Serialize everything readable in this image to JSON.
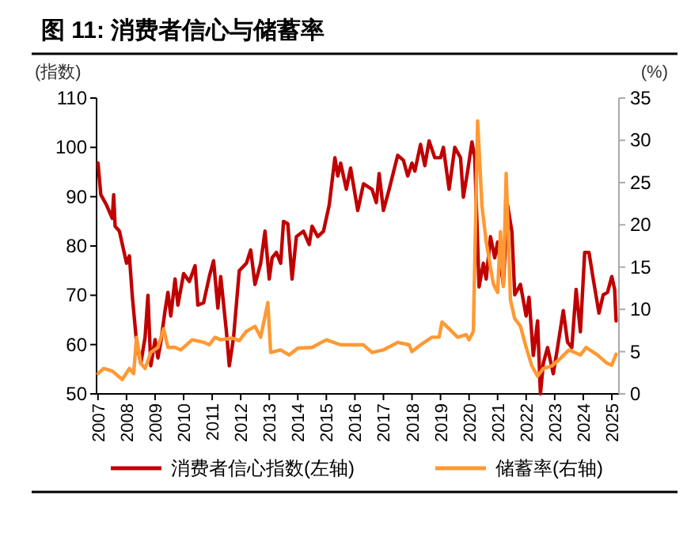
{
  "chart_data": {
    "type": "line",
    "title": "图 11: 消费者信心与储蓄率",
    "ylabel": "(指数)",
    "y2label": "(%)",
    "xlim": [
      2006.95,
      2025.25
    ],
    "xticks": [
      {
        "value": 2007,
        "label": "2007"
      },
      {
        "value": 2008,
        "label": "2008"
      },
      {
        "value": 2009,
        "label": "2009"
      },
      {
        "value": 2010,
        "label": "2010"
      },
      {
        "value": 2011,
        "label": "2011"
      },
      {
        "value": 2012,
        "label": "2012"
      },
      {
        "value": 2013,
        "label": "2013"
      },
      {
        "value": 2014,
        "label": "2014"
      },
      {
        "value": 2015,
        "label": "2015"
      },
      {
        "value": 2016,
        "label": "2016"
      },
      {
        "value": 2017,
        "label": "2017"
      },
      {
        "value": 2018,
        "label": "2018"
      },
      {
        "value": 2019,
        "label": "2019"
      },
      {
        "value": 2020,
        "label": "2020"
      },
      {
        "value": 2021,
        "label": "2021"
      },
      {
        "value": 2022,
        "label": "2022"
      },
      {
        "value": 2023,
        "label": "2023"
      },
      {
        "value": 2024,
        "label": "2024"
      },
      {
        "value": 2025,
        "label": "2025"
      }
    ],
    "ylim": [
      50,
      110
    ],
    "yticks": [
      50,
      60,
      70,
      80,
      90,
      100,
      110
    ],
    "y2lim": [
      0,
      35
    ],
    "y2ticks": [
      0,
      5,
      10,
      15,
      20,
      25,
      30,
      35
    ],
    "legend": "bottom",
    "grid": false,
    "marker": "none",
    "line_style": "solid",
    "series": [
      {
        "name": "消费者信心指数(左轴)",
        "color": "#c00000",
        "x": [
          2007.0,
          2007.1,
          2007.3,
          2007.5,
          2007.55,
          2007.6,
          2007.75,
          2008.0,
          2008.1,
          2008.2,
          2008.35,
          2008.5,
          2008.65,
          2008.75,
          2008.85,
          2009.0,
          2009.1,
          2009.2,
          2009.35,
          2009.45,
          2009.55,
          2009.7,
          2009.8,
          2010.0,
          2010.2,
          2010.4,
          2010.5,
          2010.7,
          2010.9,
          2011.05,
          2011.2,
          2011.3,
          2011.5,
          2011.6,
          2011.75,
          2011.95,
          2012.2,
          2012.35,
          2012.5,
          2012.7,
          2012.85,
          2013.0,
          2013.1,
          2013.25,
          2013.4,
          2013.5,
          2013.65,
          2013.8,
          2013.95,
          2014.2,
          2014.4,
          2014.5,
          2014.7,
          2014.9,
          2015.1,
          2015.3,
          2015.4,
          2015.5,
          2015.7,
          2015.85,
          2016.1,
          2016.3,
          2016.6,
          2016.75,
          2016.85,
          2017.0,
          2017.2,
          2017.5,
          2017.7,
          2017.85,
          2018.0,
          2018.1,
          2018.3,
          2018.45,
          2018.6,
          2018.8,
          2019.0,
          2019.1,
          2019.3,
          2019.5,
          2019.7,
          2019.8,
          2019.95,
          2020.1,
          2020.2,
          2020.35,
          2020.5,
          2020.6,
          2020.75,
          2020.9,
          2021.0,
          2021.2,
          2021.35,
          2021.5,
          2021.6,
          2021.8,
          2022.0,
          2022.1,
          2022.25,
          2022.4,
          2022.5,
          2022.6,
          2022.75,
          2022.95,
          2023.1,
          2023.3,
          2023.45,
          2023.6,
          2023.75,
          2023.9,
          2024.05,
          2024.2,
          2024.35,
          2024.55,
          2024.7,
          2024.85,
          2025.0,
          2025.1,
          2025.15
        ],
        "values": [
          96.8,
          90.4,
          88.3,
          85.6,
          90.4,
          84,
          83,
          76.5,
          78,
          70,
          60.5,
          56.2,
          61.5,
          70,
          55.7,
          61,
          57.3,
          60.5,
          66.9,
          70.6,
          65.8,
          73.3,
          68,
          74.4,
          72.8,
          76,
          68,
          68.5,
          73.8,
          77,
          67.4,
          73.8,
          62.6,
          55.7,
          61.5,
          75,
          76.5,
          79.2,
          72.2,
          76.5,
          83,
          73.3,
          77.6,
          78.7,
          76.5,
          85,
          84.5,
          73.3,
          81.9,
          83,
          80.3,
          84,
          81.9,
          83,
          88.3,
          97.9,
          94.2,
          96.8,
          91.5,
          95.8,
          87.2,
          92.6,
          91.5,
          88.8,
          94.7,
          87.2,
          91.5,
          98.4,
          97.4,
          94.2,
          96.8,
          95.2,
          100.6,
          96.3,
          101.3,
          97.9,
          97.9,
          100,
          91.5,
          100,
          97.9,
          89.9,
          95.2,
          101.1,
          97.9,
          71.7,
          76.5,
          73.3,
          81.9,
          77.6,
          80.8,
          72.2,
          88.3,
          82.9,
          70.1,
          72.2,
          65.8,
          69.6,
          57.8,
          64.8,
          50,
          56.2,
          59.4,
          54.1,
          59.4,
          66.9,
          60.5,
          59.4,
          71.2,
          62.6,
          78.7,
          78.7,
          73.3,
          66.4,
          70.1,
          70.6,
          73.8,
          71.2,
          64.8
        ]
      },
      {
        "name": "储蓄率(右轴)",
        "color": "#ff9933",
        "axis": "y2",
        "x": [
          2007.0,
          2007.2,
          2007.5,
          2007.85,
          2008.1,
          2008.25,
          2008.35,
          2008.5,
          2008.65,
          2008.85,
          2009.1,
          2009.3,
          2009.45,
          2009.7,
          2009.9,
          2010.3,
          2010.7,
          2010.9,
          2011.1,
          2011.3,
          2011.7,
          2011.95,
          2012.2,
          2012.5,
          2012.7,
          2012.95,
          2013.05,
          2013.4,
          2013.7,
          2014.0,
          2014.5,
          2015.0,
          2015.5,
          2016.0,
          2016.3,
          2016.6,
          2017.0,
          2017.5,
          2017.9,
          2018.0,
          2018.3,
          2018.7,
          2018.95,
          2019.05,
          2019.3,
          2019.6,
          2019.9,
          2020.0,
          2020.15,
          2020.3,
          2020.45,
          2020.6,
          2020.85,
          2021.0,
          2021.1,
          2021.2,
          2021.3,
          2021.45,
          2021.6,
          2021.8,
          2022.0,
          2022.2,
          2022.4,
          2022.6,
          2022.9,
          2023.2,
          2023.5,
          2023.9,
          2024.1,
          2024.5,
          2024.8,
          2025.0,
          2025.15
        ],
        "values": [
          2.4,
          3.0,
          2.7,
          1.7,
          3.0,
          2.4,
          6.7,
          3.6,
          3.0,
          4.9,
          5.5,
          7.7,
          5.5,
          5.5,
          5.2,
          6.4,
          6.1,
          5.8,
          6.7,
          6.4,
          6.6,
          6.3,
          7.4,
          8.0,
          6.7,
          10.8,
          4.9,
          5.2,
          4.6,
          5.4,
          5.5,
          6.4,
          5.8,
          5.8,
          5.8,
          4.9,
          5.2,
          6.1,
          5.8,
          5.0,
          5.8,
          6.7,
          6.7,
          8.5,
          7.7,
          6.7,
          7.0,
          6.4,
          7.4,
          32.3,
          22.3,
          18.0,
          13.0,
          12.0,
          19.2,
          12.7,
          26.1,
          11.1,
          8.9,
          8.0,
          5.5,
          3.3,
          2.1,
          3.0,
          3.3,
          4.2,
          5.2,
          4.6,
          5.5,
          4.6,
          3.7,
          3.4,
          4.7
        ]
      }
    ]
  }
}
